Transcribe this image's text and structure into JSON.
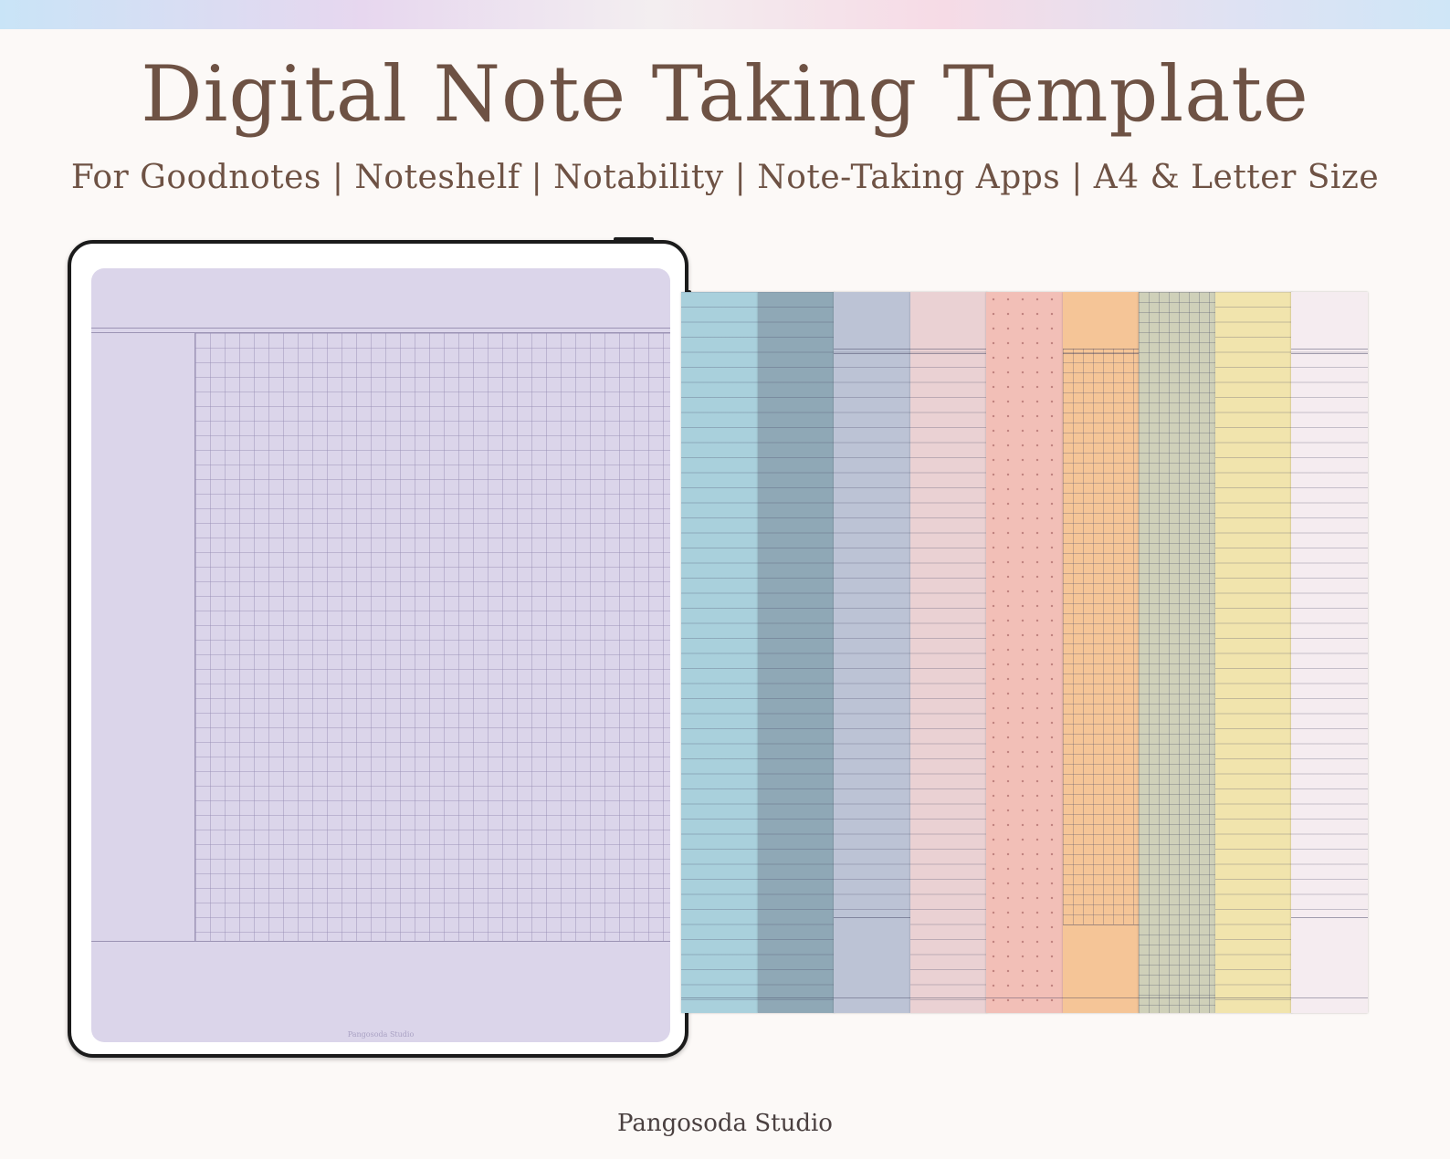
{
  "title": "Digital Note Taking Template",
  "subtitle": "For Goodnotes | Noteshelf | Notability | Note-Taking Apps | A4 & Letter Size",
  "brand": "Pangosoda Studio",
  "tablet": {
    "screen_color": "#dbd5ea",
    "watermark": "Pangosoda Studio",
    "style": "grid"
  },
  "sheets": [
    {
      "color": "#a9d0dc",
      "style": "lined"
    },
    {
      "color": "#8fa8b6",
      "style": "lined"
    },
    {
      "color": "#bcc3d5",
      "style": "lined-header-footer"
    },
    {
      "color": "#ead1d3",
      "style": "lined-header"
    },
    {
      "color": "#f2bfb7",
      "style": "dotted"
    },
    {
      "color": "#f5c597",
      "style": "grid-header-footer"
    },
    {
      "color": "#cfd0b9",
      "style": "grid"
    },
    {
      "color": "#f1e4ad",
      "style": "lined"
    },
    {
      "color": "#f5ecf0",
      "style": "lined-header-footer"
    }
  ]
}
